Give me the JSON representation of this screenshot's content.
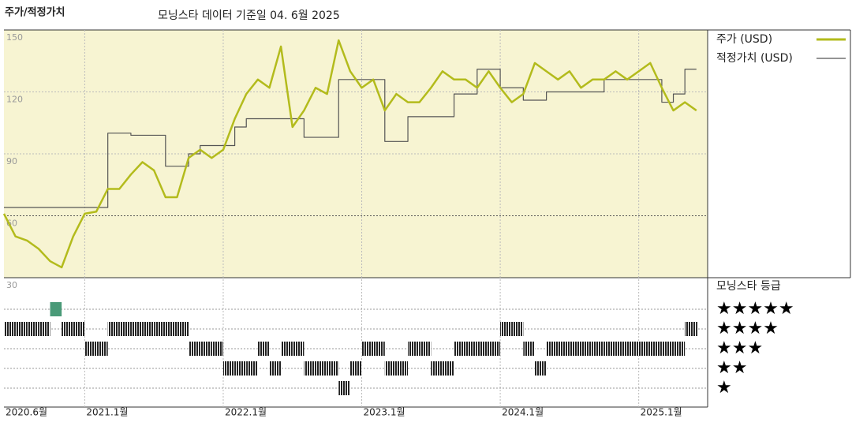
{
  "chart_data": {
    "type": "line",
    "title": "주가/적정가치",
    "subtitle": "모닝스타 데이터 기준일 04. 6월 2025",
    "x": [
      "2020.6",
      "2020.7",
      "2020.8",
      "2020.9",
      "2020.10",
      "2020.11",
      "2020.12",
      "2021.1",
      "2021.2",
      "2021.3",
      "2021.4",
      "2021.5",
      "2021.6",
      "2021.7",
      "2021.8",
      "2021.9",
      "2021.10",
      "2021.11",
      "2021.12",
      "2022.1",
      "2022.2",
      "2022.3",
      "2022.4",
      "2022.5",
      "2022.6",
      "2022.7",
      "2022.8",
      "2022.9",
      "2022.10",
      "2022.11",
      "2022.12",
      "2023.1",
      "2023.2",
      "2023.3",
      "2023.4",
      "2023.5",
      "2023.6",
      "2023.7",
      "2023.8",
      "2023.9",
      "2023.10",
      "2023.11",
      "2023.12",
      "2024.1",
      "2024.2",
      "2024.3",
      "2024.4",
      "2024.5",
      "2024.6",
      "2024.7",
      "2024.8",
      "2024.9",
      "2024.10",
      "2024.11",
      "2024.12",
      "2025.1",
      "2025.2",
      "2025.3",
      "2025.4",
      "2025.5",
      "2025.6"
    ],
    "series": [
      {
        "name": "주가 (USD)",
        "color": "#b3bb1c",
        "values": [
          61,
          50,
          48,
          44,
          38,
          35,
          50,
          61,
          62,
          73,
          73,
          80,
          86,
          82,
          69,
          69,
          88,
          92,
          88,
          92,
          107,
          119,
          126,
          122,
          142,
          103,
          111,
          122,
          119,
          145,
          130,
          122,
          126,
          111,
          119,
          115,
          115,
          122,
          130,
          126,
          126,
          122,
          130,
          122,
          115,
          119,
          134,
          130,
          126,
          130,
          122,
          126,
          126,
          130,
          126,
          130,
          134,
          122,
          111,
          115,
          111
        ]
      },
      {
        "name": "적정가치 (USD)",
        "color": "#555555",
        "step": true,
        "values": [
          64,
          64,
          64,
          64,
          64,
          64,
          64,
          64,
          64,
          100,
          100,
          99,
          99,
          99,
          84,
          84,
          90,
          94,
          94,
          94,
          103,
          107,
          107,
          107,
          107,
          107,
          98,
          98,
          98,
          126,
          126,
          126,
          126,
          96,
          96,
          108,
          108,
          108,
          108,
          119,
          119,
          131,
          131,
          122,
          122,
          116,
          116,
          120,
          120,
          120,
          120,
          120,
          126,
          126,
          126,
          126,
          126,
          115,
          119,
          131,
          131
        ]
      }
    ],
    "ylim": [
      30,
      150
    ],
    "yticks": [
      30,
      60,
      90,
      120,
      150
    ],
    "xticks": [
      {
        "value": "2020.6",
        "label": "2020.6월"
      },
      {
        "value": "2021.1",
        "label": "2021.1월"
      },
      {
        "value": "2022.1",
        "label": "2022.1월"
      },
      {
        "value": "2023.1",
        "label": "2023.1월"
      },
      {
        "value": "2024.1",
        "label": "2024.1월"
      },
      {
        "value": "2025.1",
        "label": "2025.1월"
      }
    ],
    "grid": true,
    "background": "#f7f4d2",
    "rating": {
      "title": "모닝스타 등급",
      "color": "#222222",
      "top_color": "#4a9a78",
      "levels": [
        {
          "value": 5,
          "label": "★★★★★"
        },
        {
          "value": 4,
          "label": "★★★★"
        },
        {
          "value": 3,
          "label": "★★★"
        },
        {
          "value": 2,
          "label": "★★"
        },
        {
          "value": 1,
          "label": "★"
        }
      ],
      "values": [
        4,
        4,
        4,
        4,
        5,
        4,
        4,
        3,
        3,
        4,
        4,
        4,
        4,
        4,
        4,
        4,
        3,
        3,
        3,
        2,
        2,
        2,
        3,
        2,
        3,
        3,
        2,
        2,
        2,
        1,
        2,
        3,
        3,
        2,
        2,
        3,
        3,
        2,
        2,
        3,
        3,
        3,
        3,
        4,
        4,
        3,
        2,
        3,
        3,
        3,
        3,
        3,
        3,
        3,
        3,
        3,
        3,
        3,
        3,
        4,
        4
      ]
    }
  }
}
